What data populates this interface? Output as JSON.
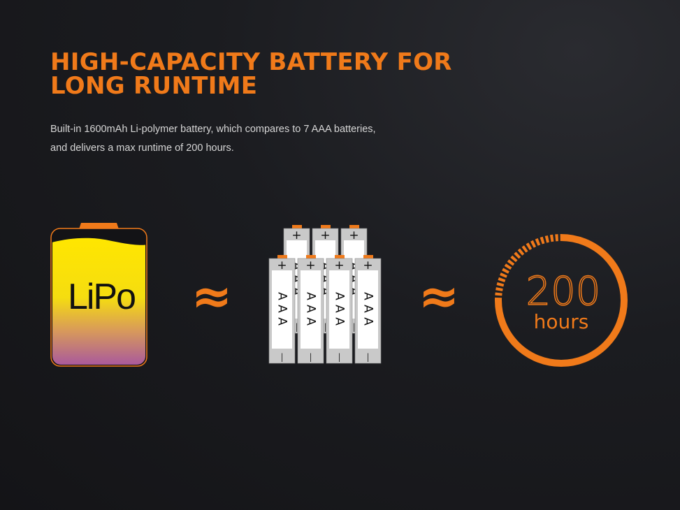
{
  "header": {
    "title_line1": "HIGH-CAPACITY BATTERY FOR",
    "title_line2": "LONG RUNTIME",
    "description_line1": "Built-in 1600mAh Li-polymer battery, which compares to 7 AAA batteries,",
    "description_line2": "and delivers a max runtime of 200 hours."
  },
  "graphic": {
    "lipo_label": "LiPo",
    "approx_symbol": "≈",
    "aaa_label": "AAA",
    "aaa_count": 7,
    "plus": "+",
    "minus": "|",
    "runtime_value": "200",
    "runtime_unit": "hours"
  },
  "colors": {
    "accent": "#f07a1a",
    "battery_top": "#ffe600",
    "battery_bottom": "#a855a8"
  }
}
